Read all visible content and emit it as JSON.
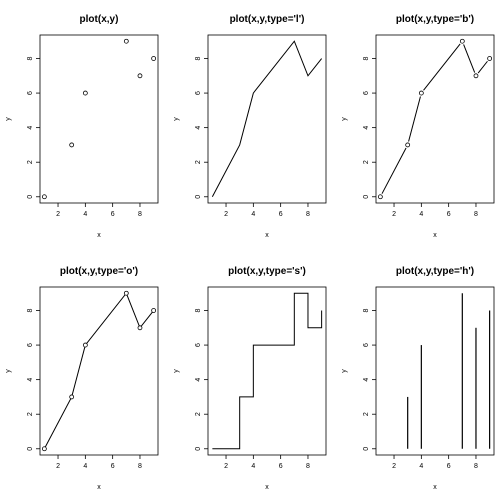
{
  "chart_data": [
    {
      "type": "scatter",
      "title": "plot(x,y)",
      "xlabel": "x",
      "ylabel": "y",
      "x": [
        1,
        3,
        4,
        7,
        8,
        9
      ],
      "y": [
        0,
        3,
        6,
        9,
        7,
        8
      ],
      "xlim": [
        1,
        9
      ],
      "ylim": [
        0,
        9
      ],
      "xticks": [
        2,
        4,
        6,
        8
      ],
      "yticks": [
        0,
        2,
        4,
        6,
        8
      ]
    },
    {
      "type": "line",
      "title": "plot(x,y,type='l')",
      "xlabel": "x",
      "ylabel": "y",
      "x": [
        1,
        3,
        4,
        7,
        8,
        9
      ],
      "y": [
        0,
        3,
        6,
        9,
        7,
        8
      ],
      "xlim": [
        1,
        9
      ],
      "ylim": [
        0,
        9
      ],
      "xticks": [
        2,
        4,
        6,
        8
      ],
      "yticks": [
        0,
        2,
        4,
        6,
        8
      ]
    },
    {
      "type": "line",
      "title": "plot(x,y,type='b')",
      "xlabel": "x",
      "ylabel": "y",
      "x": [
        1,
        3,
        4,
        7,
        8,
        9
      ],
      "y": [
        0,
        3,
        6,
        9,
        7,
        8
      ],
      "xlim": [
        1,
        9
      ],
      "ylim": [
        0,
        9
      ],
      "xticks": [
        2,
        4,
        6,
        8
      ],
      "yticks": [
        0,
        2,
        4,
        6,
        8
      ]
    },
    {
      "type": "line",
      "title": "plot(x,y,type='o')",
      "xlabel": "x",
      "ylabel": "y",
      "x": [
        1,
        3,
        4,
        7,
        8,
        9
      ],
      "y": [
        0,
        3,
        6,
        9,
        7,
        8
      ],
      "xlim": [
        1,
        9
      ],
      "ylim": [
        0,
        9
      ],
      "xticks": [
        2,
        4,
        6,
        8
      ],
      "yticks": [
        0,
        2,
        4,
        6,
        8
      ]
    },
    {
      "type": "line",
      "title": "plot(x,y,type='s')",
      "xlabel": "x",
      "ylabel": "y",
      "x": [
        1,
        3,
        4,
        7,
        8,
        9
      ],
      "y": [
        0,
        3,
        6,
        9,
        7,
        8
      ],
      "xlim": [
        1,
        9
      ],
      "ylim": [
        0,
        9
      ],
      "xticks": [
        2,
        4,
        6,
        8
      ],
      "yticks": [
        0,
        2,
        4,
        6,
        8
      ]
    },
    {
      "type": "bar",
      "title": "plot(x,y,type='h')",
      "xlabel": "x",
      "ylabel": "y",
      "x": [
        1,
        3,
        4,
        7,
        8,
        9
      ],
      "y": [
        0,
        3,
        6,
        9,
        7,
        8
      ],
      "xlim": [
        1,
        9
      ],
      "ylim": [
        0,
        9
      ],
      "xticks": [
        2,
        4,
        6,
        8
      ],
      "yticks": [
        0,
        2,
        4,
        6,
        8
      ]
    }
  ]
}
